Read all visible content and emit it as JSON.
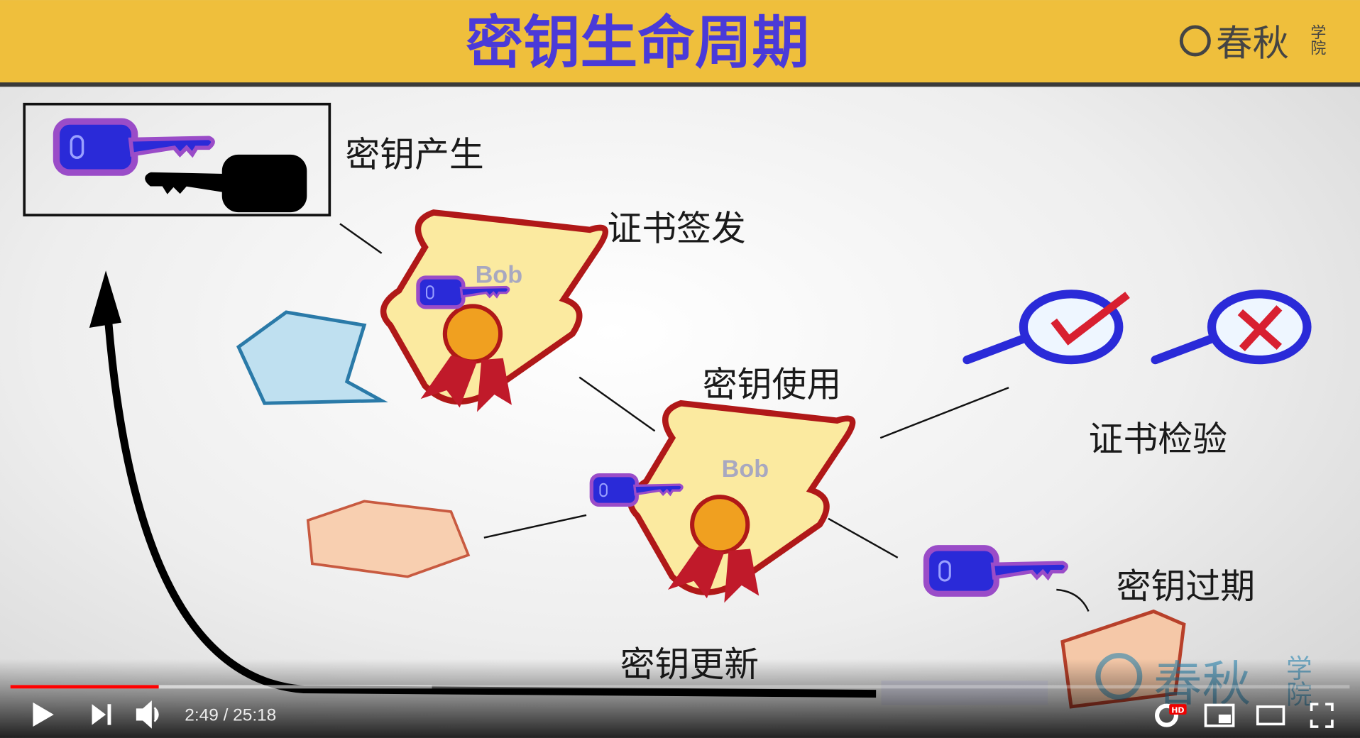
{
  "header": {
    "title": "密钥生命周期",
    "logo": {
      "name": "春秋",
      "sub": "学院"
    }
  },
  "steps": {
    "generate": "密钥产生",
    "issue": "证书签发",
    "use": "密钥使用",
    "verify": "证书检验",
    "expire": "密钥过期",
    "renew": "密钥更新"
  },
  "certificates": [
    {
      "name": "Bob"
    },
    {
      "name": "Bob"
    }
  ],
  "watermark": {
    "name": "春秋",
    "sub": "学院"
  },
  "player": {
    "time": "2:49 / 25:18",
    "quality": "HD"
  }
}
